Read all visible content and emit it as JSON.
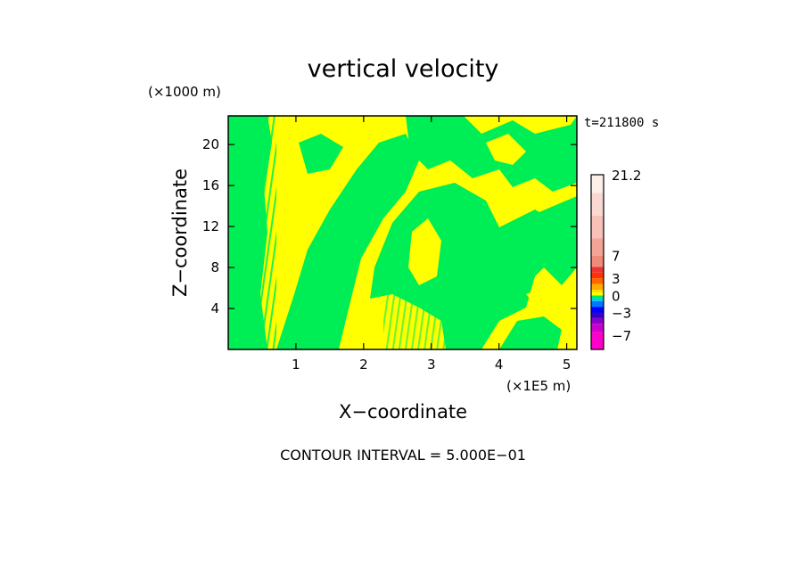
{
  "chart_data": {
    "type": "heatmap",
    "title": "vertical velocity",
    "xlabel": "X−coordinate",
    "ylabel": "Z−coordinate",
    "x_unit": "(×1E5 m)",
    "y_unit": "(×1000 m)",
    "time_label": "t=211800 s",
    "footer": "CONTOUR INTERVAL = 5.000E−01",
    "xlim": [
      0,
      5.15
    ],
    "ylim": [
      0,
      22.8
    ],
    "x_ticks": [
      1,
      2,
      3,
      4,
      5
    ],
    "y_ticks": [
      4,
      8,
      12,
      16,
      20
    ],
    "x_tick_labels": [
      "1",
      "2",
      "3",
      "4",
      "5"
    ],
    "y_tick_labels": [
      "4",
      "8",
      "12",
      "16",
      "20"
    ],
    "field_colors": {
      "positive_small": "#ffff00",
      "negative_small": "#00ee55"
    },
    "colorbar": {
      "min": -9.5,
      "max": 21.2,
      "labels": [
        {
          "value": 21.2,
          "text": "21.2"
        },
        {
          "value": 7,
          "text": "7"
        },
        {
          "value": 3,
          "text": "3"
        },
        {
          "value": 0,
          "text": "0"
        },
        {
          "value": -3,
          "text": "−3"
        },
        {
          "value": -7,
          "text": "−7"
        }
      ],
      "bands": [
        {
          "from": -9.5,
          "to": -6.5,
          "color": "#ff00cc"
        },
        {
          "from": -6.5,
          "to": -5.0,
          "color": "#cc00cc"
        },
        {
          "from": -5.0,
          "to": -4.0,
          "color": "#8800cc"
        },
        {
          "from": -4.0,
          "to": -3.0,
          "color": "#3300cc"
        },
        {
          "from": -3.0,
          "to": -2.0,
          "color": "#0000ff"
        },
        {
          "from": -2.0,
          "to": -1.0,
          "color": "#0077ff"
        },
        {
          "from": -1.0,
          "to": -0.5,
          "color": "#00ccee"
        },
        {
          "from": -0.5,
          "to": 0.0,
          "color": "#00ee55"
        },
        {
          "from": 0.0,
          "to": 0.5,
          "color": "#ffff00"
        },
        {
          "from": 0.5,
          "to": 1.0,
          "color": "#ffdd00"
        },
        {
          "from": 1.0,
          "to": 2.0,
          "color": "#ffaa00"
        },
        {
          "from": 2.0,
          "to": 3.0,
          "color": "#ff6600"
        },
        {
          "from": 3.0,
          "to": 4.0,
          "color": "#ff3300"
        },
        {
          "from": 4.0,
          "to": 5.0,
          "color": "#ee3333"
        },
        {
          "from": 5.0,
          "to": 7.0,
          "color": "#f08a7a"
        },
        {
          "from": 7.0,
          "to": 10.0,
          "color": "#f4a497"
        },
        {
          "from": 10.0,
          "to": 14.0,
          "color": "#f7c1b8"
        },
        {
          "from": 14.0,
          "to": 18.0,
          "color": "#f9d8d2"
        },
        {
          "from": 18.0,
          "to": 21.2,
          "color": "#fcefe8"
        }
      ]
    }
  }
}
